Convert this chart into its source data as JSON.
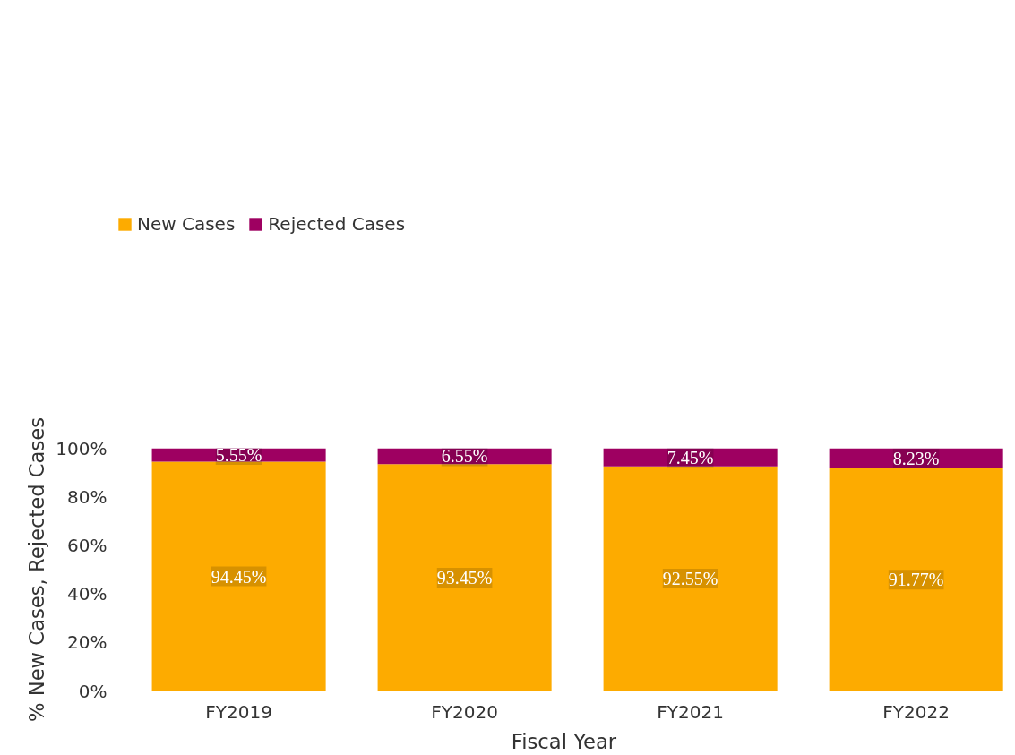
{
  "chart_data": {
    "type": "bar",
    "stacked": true,
    "xlabel": "Fiscal Year",
    "ylabel": "% New Cases, Rejected Cases",
    "categories": [
      "FY2019",
      "FY2020",
      "FY2021",
      "FY2022"
    ],
    "series": [
      {
        "name": "New Cases",
        "color": "#fdab00",
        "values": [
          94.45,
          93.45,
          92.55,
          91.77
        ],
        "value_labels": [
          "94.45%",
          "93.45%",
          "92.55%",
          "91.77%"
        ]
      },
      {
        "name": "Rejected Cases",
        "color": "#9e0061",
        "values": [
          5.55,
          6.55,
          7.45,
          8.23
        ],
        "value_labels": [
          "5.55%",
          "6.55%",
          "7.45%",
          "8.23%"
        ]
      }
    ],
    "ylim": [
      0,
      100
    ],
    "yticks": [
      {
        "value": 0,
        "label": "0%"
      },
      {
        "value": 20,
        "label": "20%"
      },
      {
        "value": 40,
        "label": "40%"
      },
      {
        "value": 60,
        "label": "60%"
      },
      {
        "value": 80,
        "label": "80%"
      },
      {
        "value": 100,
        "label": "100%"
      }
    ],
    "grid": false,
    "legend": "top left"
  }
}
